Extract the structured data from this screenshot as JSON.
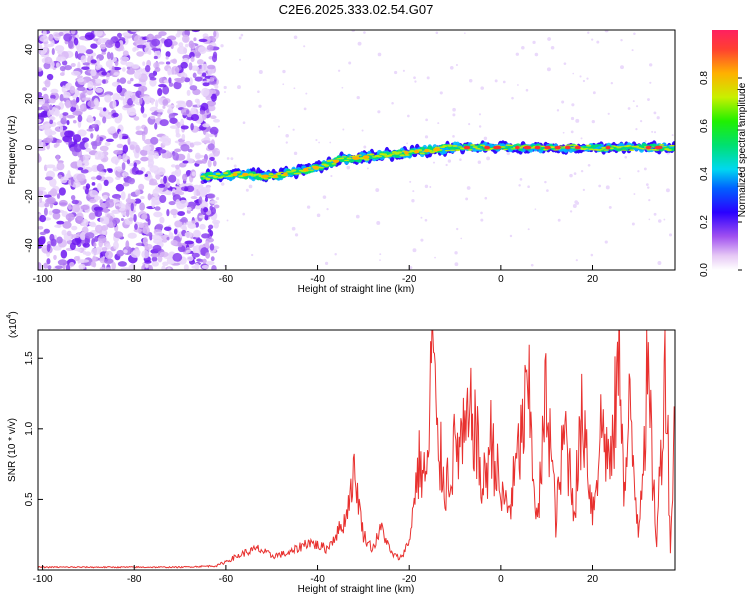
{
  "chart_data": [
    {
      "type": "heatmap",
      "title": "C2E6.2025.333.02.54.G07",
      "xlabel": "Height of straight line (km)",
      "ylabel": "Frequency (Hz)",
      "xlim": [
        -101,
        38
      ],
      "ylim": [
        -50,
        48
      ],
      "xticks": [
        -100,
        -80,
        -60,
        -40,
        -20,
        0,
        20
      ],
      "yticks": [
        -40,
        -20,
        0,
        20,
        40
      ],
      "colorbar": {
        "label": "Normalized spectral amplitude",
        "range": [
          0,
          1
        ],
        "ticks": [
          0.0,
          0.2,
          0.4,
          0.6,
          0.8
        ]
      },
      "ridge": {
        "description": "dominant frequency track",
        "x": [
          -65,
          -60,
          -55,
          -50,
          -45,
          -40,
          -35,
          -30,
          -25,
          -20,
          -15,
          -10,
          -5,
          0,
          10,
          20,
          30,
          38
        ],
        "frequency": [
          -12,
          -11,
          -11,
          -12,
          -10,
          -8,
          -5,
          -4,
          -3,
          -2,
          -1,
          0,
          0,
          0,
          0,
          0,
          0,
          0
        ]
      },
      "noise_region_x": [
        -101,
        -62
      ]
    },
    {
      "type": "line",
      "title": "",
      "xlabel": "Height of straight line (km)",
      "ylabel": "SNR (10 * v/v)",
      "y_scale_label": "(x10",
      "y_scale_exp": "4",
      "xlim": [
        -101,
        38
      ],
      "ylim": [
        0,
        1.7
      ],
      "xticks": [
        -100,
        -80,
        -60,
        -40,
        -20,
        0,
        20
      ],
      "yticks": [
        0.5,
        1.0,
        1.5
      ],
      "series": [
        {
          "name": "SNR",
          "color": "#e8312f",
          "x": [
            -101,
            -90,
            -80,
            -70,
            -62,
            -56,
            -53,
            -50,
            -46,
            -42,
            -38,
            -34,
            -32,
            -30,
            -28,
            -26,
            -24,
            -22,
            -20,
            -18,
            -16,
            -15,
            -14,
            -12,
            -10,
            -8,
            -6,
            -4,
            -2,
            0,
            2,
            4,
            6,
            8,
            10,
            12,
            14,
            16,
            18,
            20,
            22,
            24,
            26,
            27,
            28,
            30,
            32,
            34,
            36,
            37,
            38
          ],
          "values": [
            0.02,
            0.02,
            0.02,
            0.02,
            0.03,
            0.12,
            0.15,
            0.1,
            0.12,
            0.2,
            0.15,
            0.35,
            0.7,
            0.25,
            0.15,
            0.3,
            0.12,
            0.08,
            0.2,
            0.75,
            0.65,
            1.7,
            0.9,
            0.6,
            0.85,
            0.9,
            1.1,
            0.55,
            0.95,
            0.5,
            0.45,
            0.85,
            1.25,
            0.3,
            1.3,
            0.35,
            1.0,
            0.45,
            1.15,
            0.4,
            1.05,
            0.7,
            1.6,
            0.5,
            1.1,
            0.3,
            1.35,
            0.2,
            1.55,
            0.15,
            1.1
          ]
        }
      ]
    }
  ]
}
